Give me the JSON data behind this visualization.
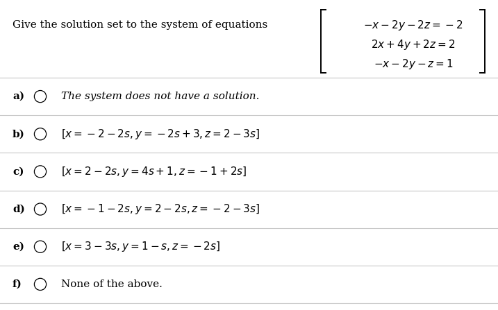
{
  "title": "Give the solution set to the system of equations",
  "title_fontsize": 11,
  "bg_color": "#ffffff",
  "text_color": "#000000",
  "eq1": "$-x-2y-2z=-2$",
  "eq2": "$2x+4y+2z=2$",
  "eq3": "$-x-2y-z=1$",
  "options": [
    {
      "label": "a)",
      "italic": true,
      "text": "The system does not have a solution."
    },
    {
      "label": "b)",
      "italic": false,
      "text": "$[x=-2-2s,y=-2s+3,z=2-3s]$"
    },
    {
      "label": "c)",
      "italic": false,
      "text": "$[x=2-2s,y=4s+1,z=-1+2s]$"
    },
    {
      "label": "d)",
      "italic": false,
      "text": "$[x=-1-2s,y=2-2s,z=-2-3s]$"
    },
    {
      "label": "e)",
      "italic": false,
      "text": "$[x=3-3s,y=1-s,z=-2s]$"
    },
    {
      "label": "f)",
      "italic": false,
      "text": "None of the above."
    }
  ],
  "divider_color": "#c8c8c8",
  "option_fontsize": 11,
  "label_fontsize": 11
}
